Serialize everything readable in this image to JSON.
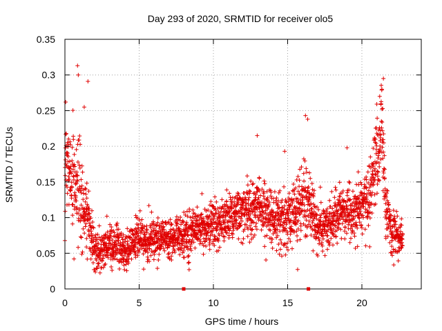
{
  "chart_data": {
    "type": "scatter",
    "title": "Day 293 of 2020, SRMTID for receiver olo5",
    "xlabel": "GPS time / hours",
    "ylabel": "SRMTID / TECUs",
    "xlim": [
      0,
      24
    ],
    "ylim": [
      0,
      0.35
    ],
    "x_ticks": [
      0,
      5,
      10,
      15,
      20
    ],
    "x_tick_labels": [
      "0",
      "5",
      "10",
      "15",
      "20"
    ],
    "y_ticks": [
      0,
      0.05,
      0.1,
      0.15,
      0.2,
      0.25,
      0.3,
      0.35
    ],
    "y_tick_labels": [
      "0",
      "0.05",
      "0.1",
      "0.15",
      "0.2",
      "0.25",
      "0.3",
      "0.35"
    ],
    "grid": true,
    "marker": "+",
    "color": "#e00000",
    "time_range_hours": [
      0,
      22.75
    ],
    "trend_profile": [
      {
        "x": 0.0,
        "y": 0.18,
        "spread": 0.06
      },
      {
        "x": 0.5,
        "y": 0.15,
        "spread": 0.06
      },
      {
        "x": 1.0,
        "y": 0.13,
        "spread": 0.07
      },
      {
        "x": 1.5,
        "y": 0.1,
        "spread": 0.05
      },
      {
        "x": 2.0,
        "y": 0.06,
        "spread": 0.025
      },
      {
        "x": 2.5,
        "y": 0.05,
        "spread": 0.025
      },
      {
        "x": 3.0,
        "y": 0.065,
        "spread": 0.03
      },
      {
        "x": 3.5,
        "y": 0.06,
        "spread": 0.025
      },
      {
        "x": 4.0,
        "y": 0.055,
        "spread": 0.025
      },
      {
        "x": 5.0,
        "y": 0.07,
        "spread": 0.025
      },
      {
        "x": 6.0,
        "y": 0.07,
        "spread": 0.025
      },
      {
        "x": 7.0,
        "y": 0.072,
        "spread": 0.025
      },
      {
        "x": 8.0,
        "y": 0.075,
        "spread": 0.025
      },
      {
        "x": 9.0,
        "y": 0.082,
        "spread": 0.025
      },
      {
        "x": 10.0,
        "y": 0.09,
        "spread": 0.03
      },
      {
        "x": 11.0,
        "y": 0.1,
        "spread": 0.03
      },
      {
        "x": 12.0,
        "y": 0.11,
        "spread": 0.03
      },
      {
        "x": 13.0,
        "y": 0.115,
        "spread": 0.035
      },
      {
        "x": 14.0,
        "y": 0.1,
        "spread": 0.035
      },
      {
        "x": 15.0,
        "y": 0.095,
        "spread": 0.035
      },
      {
        "x": 16.0,
        "y": 0.12,
        "spread": 0.045
      },
      {
        "x": 16.5,
        "y": 0.12,
        "spread": 0.04
      },
      {
        "x": 17.0,
        "y": 0.09,
        "spread": 0.03
      },
      {
        "x": 17.5,
        "y": 0.085,
        "spread": 0.03
      },
      {
        "x": 18.0,
        "y": 0.095,
        "spread": 0.03
      },
      {
        "x": 18.5,
        "y": 0.11,
        "spread": 0.035
      },
      {
        "x": 19.0,
        "y": 0.11,
        "spread": 0.035
      },
      {
        "x": 19.5,
        "y": 0.1,
        "spread": 0.035
      },
      {
        "x": 20.0,
        "y": 0.12,
        "spread": 0.035
      },
      {
        "x": 20.5,
        "y": 0.13,
        "spread": 0.045
      },
      {
        "x": 21.0,
        "y": 0.19,
        "spread": 0.06
      },
      {
        "x": 21.3,
        "y": 0.23,
        "spread": 0.05
      },
      {
        "x": 21.6,
        "y": 0.12,
        "spread": 0.04
      },
      {
        "x": 22.0,
        "y": 0.08,
        "spread": 0.03
      },
      {
        "x": 22.5,
        "y": 0.07,
        "spread": 0.025
      },
      {
        "x": 22.75,
        "y": 0.075,
        "spread": 0.025
      }
    ],
    "spikes": [
      {
        "x": 0.85,
        "y": 0.313
      },
      {
        "x": 0.9,
        "y": 0.3
      },
      {
        "x": 1.55,
        "y": 0.291
      },
      {
        "x": 0.05,
        "y": 0.262
      },
      {
        "x": 1.3,
        "y": 0.255
      },
      {
        "x": 16.2,
        "y": 0.243
      },
      {
        "x": 16.35,
        "y": 0.238
      },
      {
        "x": 12.95,
        "y": 0.215
      },
      {
        "x": 14.8,
        "y": 0.193
      },
      {
        "x": 21.45,
        "y": 0.295
      },
      {
        "x": 21.35,
        "y": 0.28
      },
      {
        "x": 21.2,
        "y": 0.27
      },
      {
        "x": 19.0,
        "y": 0.198
      },
      {
        "x": 20.85,
        "y": 0.21
      }
    ],
    "axis_markers": [
      {
        "x": 8.0,
        "y": 0
      },
      {
        "x": 16.4,
        "y": 0
      }
    ],
    "n_points": 2600,
    "seed": 293
  }
}
